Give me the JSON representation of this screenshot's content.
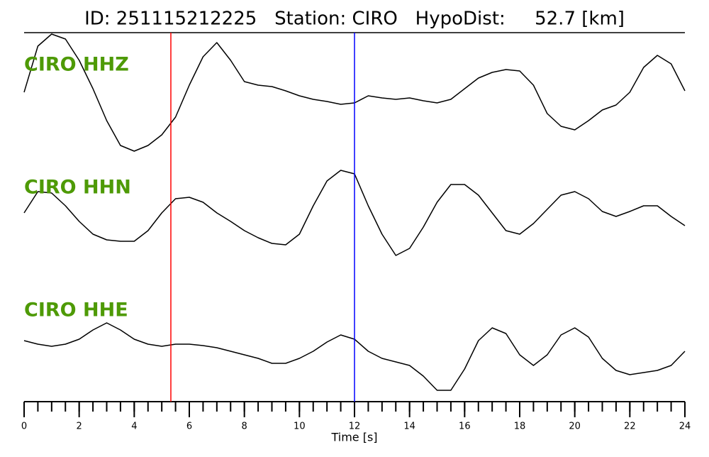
{
  "chart_data": {
    "type": "line",
    "title": "ID: 251115212225   Station: CIRO   HypoDist:     52.7 [km]",
    "xlabel": "Time [s]",
    "xlim": [
      0,
      24
    ],
    "xticks": [
      0,
      2,
      4,
      6,
      8,
      10,
      12,
      14,
      16,
      18,
      20,
      22,
      24
    ],
    "xticks_minor": [
      0,
      0.5,
      1,
      1.5,
      2,
      2.5,
      3,
      3.5,
      4,
      4.5,
      5,
      5.5,
      6,
      6.5,
      7,
      7.5,
      8,
      8.5,
      9,
      9.5,
      10,
      10.5,
      11,
      11.5,
      12,
      12.5,
      13,
      13.5,
      14,
      14.5,
      15,
      15.5,
      16,
      16.5,
      17,
      17.5,
      18,
      18.5,
      19,
      19.5,
      20,
      20.5,
      21,
      21.5,
      22,
      22.5,
      23,
      23.5,
      24
    ],
    "label_color": "#4e9a06",
    "markers": [
      {
        "x": 5.33,
        "color": "#ff0000"
      },
      {
        "x": 12.0,
        "color": "#0000ff"
      }
    ],
    "x": [
      0,
      0.5,
      1,
      1.5,
      2,
      2.5,
      3,
      3.5,
      4,
      4.5,
      5,
      5.5,
      6,
      6.5,
      7,
      7.5,
      8,
      8.5,
      9,
      9.5,
      10,
      10.5,
      11,
      11.5,
      12,
      12.5,
      13,
      13.5,
      14,
      14.5,
      15,
      15.5,
      16,
      16.5,
      17,
      17.5,
      18,
      18.5,
      19,
      19.5,
      20,
      20.5,
      21,
      21.5,
      22,
      22.5,
      23,
      23.5,
      24
    ],
    "series": [
      {
        "name": "CIRO HHZ",
        "color": "#000000",
        "values": [
          0,
          0.65,
          0.82,
          0.75,
          0.45,
          0.05,
          -0.4,
          -0.75,
          -0.83,
          -0.75,
          -0.6,
          -0.35,
          0.1,
          0.5,
          0.7,
          0.45,
          0.15,
          0.1,
          0.08,
          0.02,
          -0.05,
          -0.1,
          -0.13,
          -0.17,
          -0.15,
          -0.05,
          -0.08,
          -0.1,
          -0.08,
          -0.12,
          -0.15,
          -0.1,
          0.05,
          0.2,
          0.28,
          0.32,
          0.3,
          0.1,
          -0.3,
          -0.48,
          -0.53,
          -0.4,
          -0.25,
          -0.18,
          0,
          0.35,
          0.52,
          0.4,
          0.02
        ]
      },
      {
        "name": "CIRO HHN",
        "color": "#000000",
        "values": [
          0,
          0.3,
          0.28,
          0.1,
          -0.12,
          -0.3,
          -0.38,
          -0.4,
          -0.4,
          -0.25,
          0,
          0.2,
          0.22,
          0.15,
          0,
          -0.12,
          -0.25,
          -0.35,
          -0.43,
          -0.45,
          -0.3,
          0.1,
          0.45,
          0.6,
          0.55,
          0.1,
          -0.3,
          -0.6,
          -0.5,
          -0.2,
          0.15,
          0.4,
          0.4,
          0.25,
          0,
          -0.25,
          -0.3,
          -0.15,
          0.05,
          0.25,
          0.3,
          0.2,
          0.02,
          -0.05,
          0.02,
          0.1,
          0.1,
          -0.05,
          -0.18
        ]
      },
      {
        "name": "CIRO HHE",
        "color": "#000000",
        "values": [
          0.1,
          0.05,
          0.02,
          0.05,
          0.12,
          0.25,
          0.35,
          0.25,
          0.12,
          0.05,
          0.02,
          0.05,
          0.05,
          0.03,
          0,
          -0.05,
          -0.1,
          -0.15,
          -0.22,
          -0.22,
          -0.15,
          -0.05,
          0.08,
          0.18,
          0.12,
          -0.05,
          -0.15,
          -0.2,
          -0.25,
          -0.4,
          -0.6,
          -0.6,
          -0.3,
          0.1,
          0.28,
          0.2,
          -0.1,
          -0.25,
          -0.1,
          0.18,
          0.28,
          0.15,
          -0.15,
          -0.32,
          -0.38,
          -0.35,
          -0.32,
          -0.25,
          -0.05
        ]
      }
    ]
  }
}
